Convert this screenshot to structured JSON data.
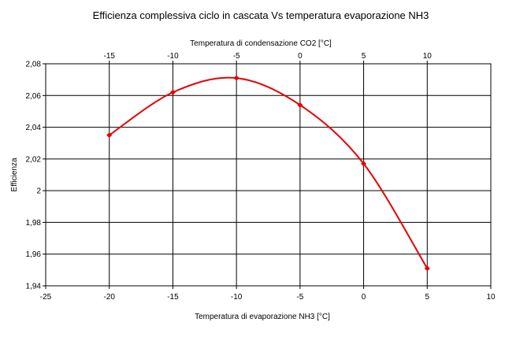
{
  "chart_data": {
    "type": "line",
    "title": "Efficienza complessiva ciclo in cascata Vs temperatura evaporazione NH3",
    "xlabel": "Temperatura di evaporazione NH3  [°C]",
    "x2label": "Temperatura di condensazione CO2  [°C]",
    "ylabel": "Efficienza",
    "xlim": [
      -25,
      10
    ],
    "x2lim": [
      -20,
      15
    ],
    "ylim": [
      1.94,
      2.08
    ],
    "xticks": [
      "-25",
      "-20",
      "-15",
      "-10",
      "-5",
      "0",
      "5",
      "10"
    ],
    "x2ticks": [
      "-15",
      "-10",
      "-5",
      "0",
      "5",
      "10"
    ],
    "yticks": [
      "1,94",
      "1,96",
      "1,98",
      "2",
      "2,02",
      "2,04",
      "2,06",
      "2,08"
    ],
    "grid": true,
    "series": [
      {
        "color": "#e60000",
        "x": [
          -20,
          -15,
          -10,
          -5,
          0,
          5
        ],
        "y": [
          2.035,
          2.062,
          2.071,
          2.054,
          2.017,
          1.951
        ]
      }
    ]
  }
}
